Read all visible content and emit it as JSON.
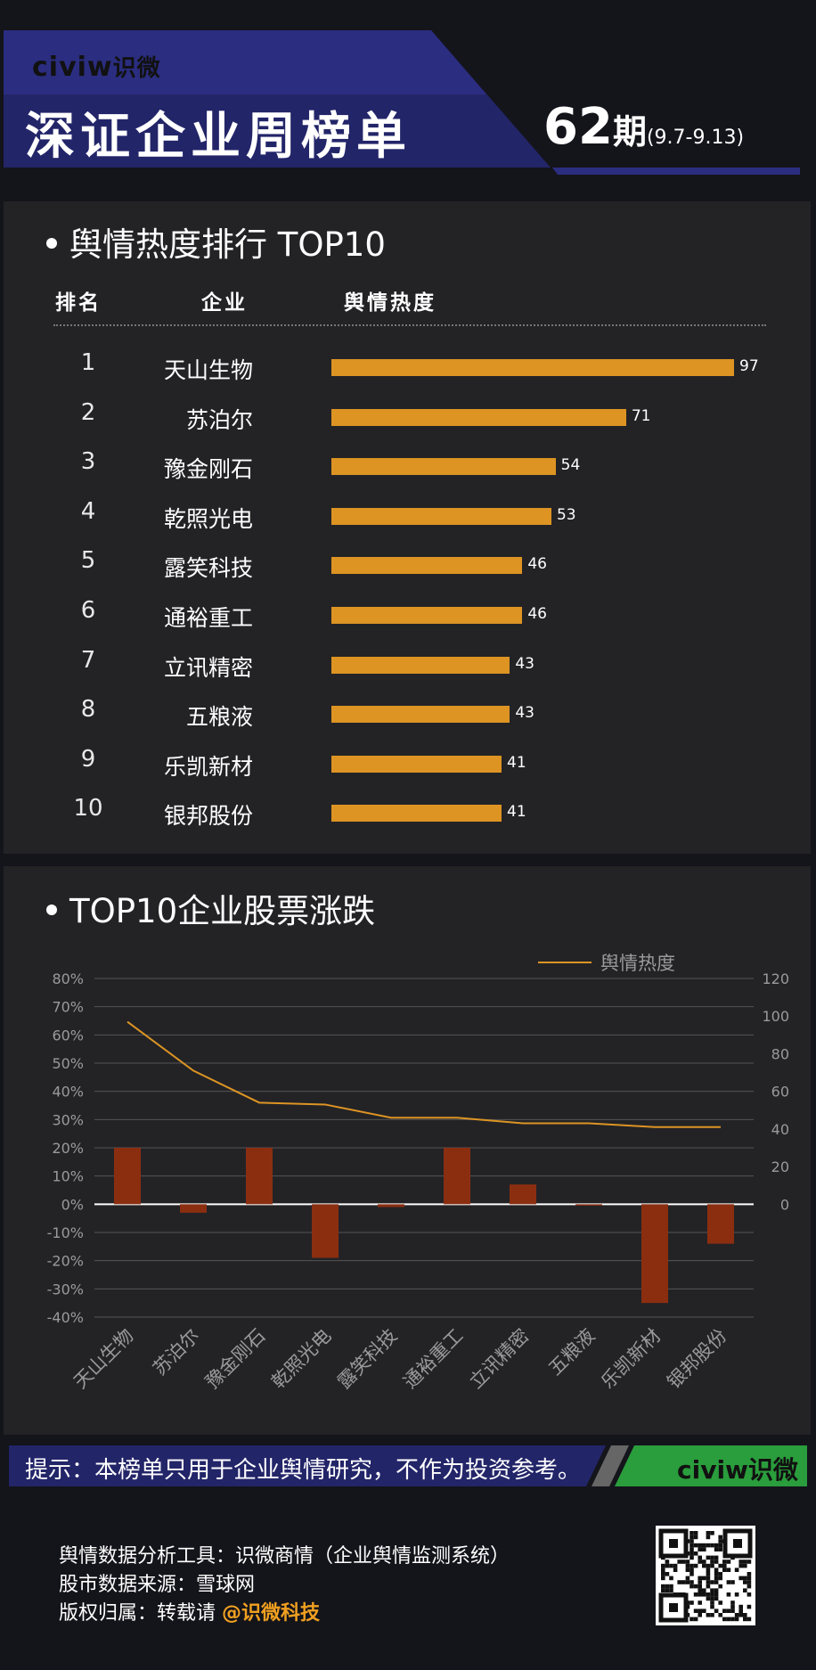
{
  "header": {
    "logo_latin": "civiw",
    "logo_cn": "识微",
    "title": "深证企业周榜单",
    "issue_num": "62",
    "issue_label": "期",
    "date_range": "(9.7-9.13)"
  },
  "section1": {
    "title": "舆情热度排行 TOP10",
    "col_rank": "排名",
    "col_company": "企业",
    "col_heat": "舆情热度"
  },
  "section2": {
    "title": "TOP10企业股票涨跌",
    "legend": "舆情热度"
  },
  "chart_data": [
    {
      "type": "bar",
      "title": "舆情热度排行 TOP10",
      "categories": [
        "天山生物",
        "苏泊尔",
        "豫金刚石",
        "乾照光电",
        "露笑科技",
        "通裕重工",
        "立讯精密",
        "五粮液",
        "乐凯新材",
        "银邦股份"
      ],
      "ranks": [
        "1",
        "2",
        "3",
        "4",
        "5",
        "6",
        "7",
        "8",
        "9",
        "10"
      ],
      "values": [
        97,
        71,
        54,
        53,
        46,
        46,
        43,
        43,
        41,
        41
      ],
      "orientation": "horizontal",
      "color": "#dd9423"
    },
    {
      "type": "bar",
      "title": "TOP10企业股票涨跌",
      "categories": [
        "天山生物",
        "苏泊尔",
        "豫金刚石",
        "乾照光电",
        "露笑科技",
        "通裕重工",
        "立讯精密",
        "五粮液",
        "乐凯新材",
        "银邦股份"
      ],
      "series": [
        {
          "type": "bar",
          "axis": "left",
          "color": "#8b2e10",
          "values": [
            20,
            -3,
            20,
            -19,
            -1,
            20,
            7,
            0,
            -35,
            -14
          ]
        },
        {
          "name": "舆情热度",
          "type": "line",
          "axis": "right",
          "color": "#dd9423",
          "values": [
            97,
            71,
            54,
            53,
            46,
            46,
            43,
            43,
            41,
            41
          ]
        }
      ],
      "ylim_left": [
        -40,
        80
      ],
      "yticks_left": [
        "80%",
        "70%",
        "60%",
        "50%",
        "40%",
        "30%",
        "20%",
        "10%",
        "0%",
        "-10%",
        "-20%",
        "-30%",
        "-40%"
      ],
      "ylim_right": [
        0,
        120
      ],
      "yticks_right": [
        "120",
        "100",
        "80",
        "60",
        "40",
        "20",
        "0"
      ],
      "grid": true,
      "legend_position": "top-right"
    }
  ],
  "tip": {
    "text": "提示：本榜单只用于企业舆情研究，不作为投资参考。",
    "logo": "civiw识微"
  },
  "footer": {
    "line1": "舆情数据分析工具：识微商情（企业舆情监测系统）",
    "line2": "股市数据来源：雪球网",
    "line3_prefix": "版权归属：转载请 ",
    "line3_highlight": "@识微科技"
  },
  "colors": {
    "accent": "#dd9423",
    "bar_dark": "#8b2e10",
    "navy": "#222266",
    "green": "#2a9d3c"
  }
}
